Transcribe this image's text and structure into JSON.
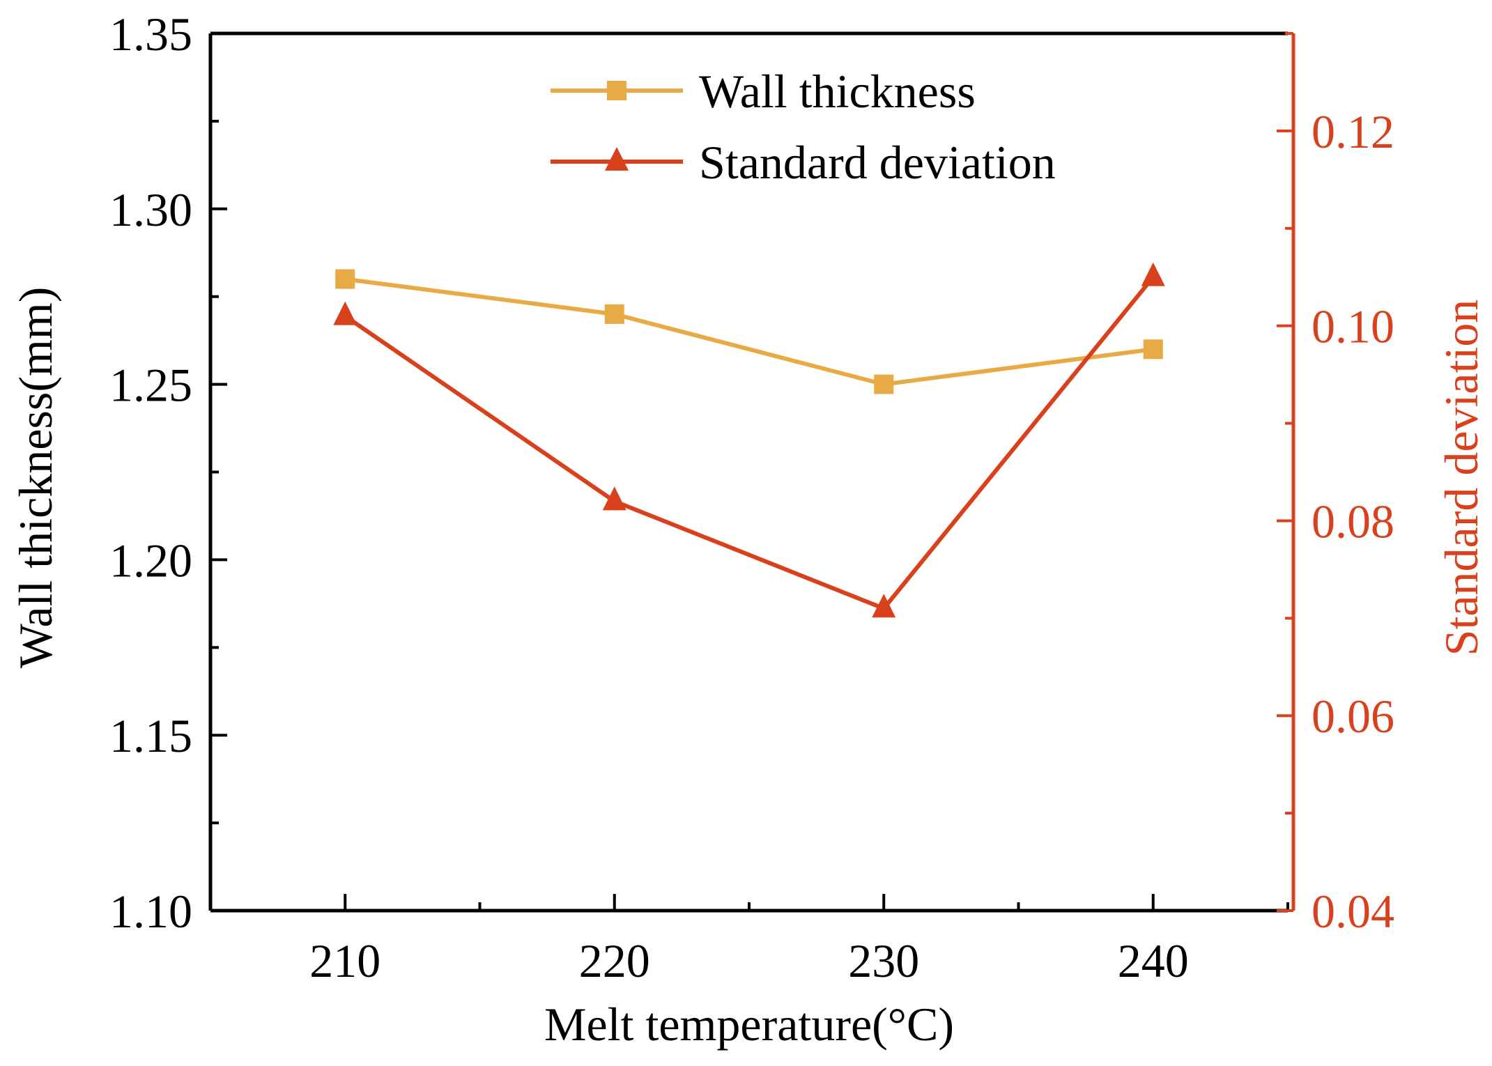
{
  "chart_data": {
    "type": "line",
    "title": "",
    "xlabel": "Melt temperature(°C)",
    "ylabel_left": "Wall thickness(mm)",
    "ylabel_right": "Standard deviation",
    "x": [
      210,
      220,
      230,
      240
    ],
    "xlim": [
      205,
      245
    ],
    "xticks": [
      210,
      220,
      230,
      240
    ],
    "xtick_labels": [
      "210",
      "220",
      "230",
      "240"
    ],
    "ylim_left": [
      1.1,
      1.35
    ],
    "yticks_left": [
      1.1,
      1.15,
      1.2,
      1.25,
      1.3,
      1.35
    ],
    "ytick_labels_left": [
      "1.10",
      "1.15",
      "1.20",
      "1.25",
      "1.30",
      "1.35"
    ],
    "ylim_right": [
      0.04,
      0.13
    ],
    "yticks_right": [
      0.04,
      0.06,
      0.08,
      0.1,
      0.12
    ],
    "ytick_labels_right": [
      "0.04",
      "0.06",
      "0.08",
      "0.10",
      "0.12"
    ],
    "grid": false,
    "legend_position": "top-center",
    "series": [
      {
        "name": "Wall thickness",
        "axis": "left",
        "marker": "square",
        "color": "#E8AA45",
        "values": [
          1.28,
          1.27,
          1.25,
          1.26
        ]
      },
      {
        "name": "Standard deviation",
        "axis": "right",
        "marker": "triangle",
        "color": "#D9401C",
        "values": [
          0.101,
          0.082,
          0.071,
          0.105
        ]
      }
    ],
    "colors": {
      "axis": "#000000",
      "right_axis": "#D9401C"
    }
  }
}
